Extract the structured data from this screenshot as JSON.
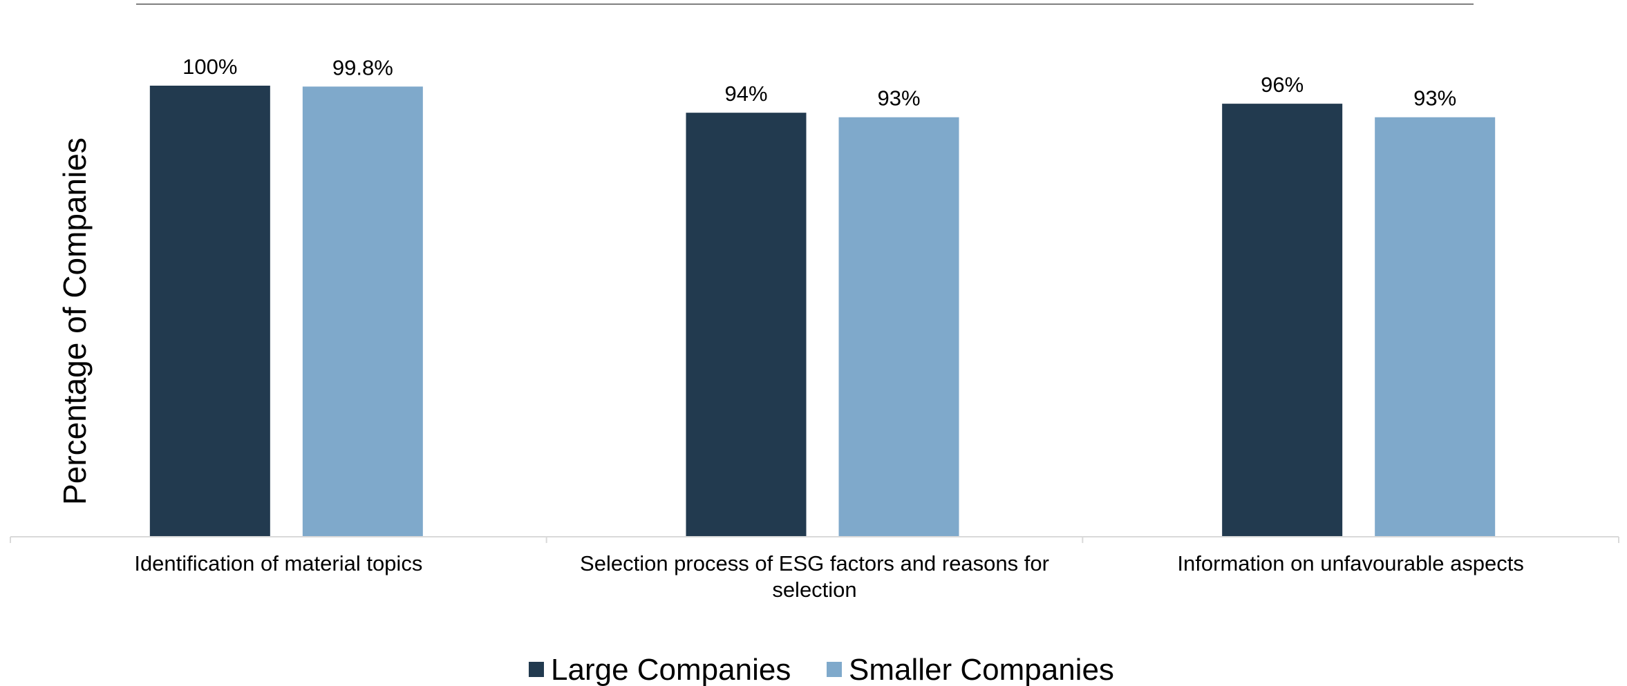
{
  "chart_data": {
    "type": "bar",
    "title": "",
    "xlabel": "",
    "ylabel": "Percentage of Companies",
    "ylim": [
      0,
      100
    ],
    "grid": false,
    "legend_position": "bottom",
    "categories": [
      [
        "Identification of material topics"
      ],
      [
        "Selection process of ESG factors and reasons for",
        "selection"
      ],
      [
        "Information on unfavourable aspects"
      ]
    ],
    "series": [
      {
        "name": "Large Companies",
        "color": "#223a4f",
        "values": [
          100,
          94,
          96
        ],
        "labels": [
          "100%",
          "94%",
          "96%"
        ]
      },
      {
        "name": "Smaller Companies",
        "color": "#7fa9cb",
        "values": [
          99.8,
          93,
          93
        ],
        "labels": [
          "99.8%",
          "93%",
          "93%"
        ]
      }
    ]
  }
}
